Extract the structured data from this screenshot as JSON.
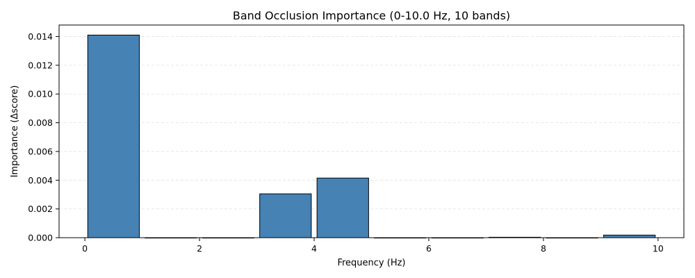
{
  "chart_data": {
    "type": "bar",
    "title": "Band Occlusion Importance (0-10.0 Hz, 10 bands)",
    "xlabel": "Frequency (Hz)",
    "ylabel": "Importance (Δscore)",
    "bar_color": "#4682b4",
    "edge_color": "#000000",
    "grid": true,
    "bands": [
      {
        "start": 0,
        "end": 1,
        "value": 0.0141
      },
      {
        "start": 1,
        "end": 2,
        "value": 0.0
      },
      {
        "start": 2,
        "end": 3,
        "value": 0.0
      },
      {
        "start": 3,
        "end": 4,
        "value": 0.00305
      },
      {
        "start": 4,
        "end": 5,
        "value": 0.00415
      },
      {
        "start": 5,
        "end": 6,
        "value": 0.0
      },
      {
        "start": 6,
        "end": 7,
        "value": 0.0
      },
      {
        "start": 7,
        "end": 8,
        "value": 3e-05
      },
      {
        "start": 8,
        "end": 9,
        "value": 0.0
      },
      {
        "start": 9,
        "end": 10,
        "value": 0.00018
      }
    ],
    "xlim": [
      -0.45,
      10.45
    ],
    "ylim": [
      0,
      0.0148
    ],
    "xticks": [
      0,
      2,
      4,
      6,
      8,
      10
    ],
    "xtick_labels": [
      "0",
      "2",
      "4",
      "6",
      "8",
      "10"
    ],
    "yticks": [
      0,
      0.002,
      0.004,
      0.006,
      0.008,
      0.01,
      0.012,
      0.014
    ],
    "ytick_labels": [
      "0.000",
      "0.002",
      "0.004",
      "0.006",
      "0.008",
      "0.010",
      "0.012",
      "0.014"
    ]
  }
}
